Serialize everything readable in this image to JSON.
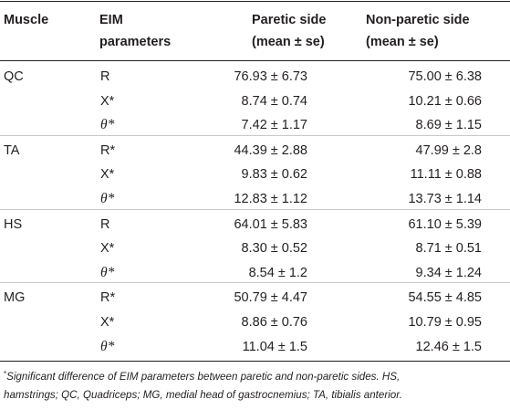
{
  "table": {
    "headers": {
      "muscle": "Muscle",
      "eim_line1": "EIM",
      "eim_line2": "parameters",
      "paretic_line1": "Paretic side",
      "paretic_line2": "(mean ± se)",
      "nonparetic_line1": "Non-paretic side",
      "nonparetic_line2": "(mean ± se)"
    },
    "rows": [
      {
        "muscle": "QC",
        "param": "R",
        "paretic": "76.93 ± 6.73",
        "nonparetic": "75.00 ± 6.38"
      },
      {
        "muscle": "",
        "param": "X*",
        "paretic": "8.74 ± 0.74",
        "nonparetic": "10.21 ± 0.66"
      },
      {
        "muscle": "",
        "param": "θ*",
        "paretic": "7.42 ± 1.17",
        "nonparetic": "8.69 ± 1.15"
      },
      {
        "muscle": "TA",
        "param": "R*",
        "paretic": "44.39 ± 2.88",
        "nonparetic": "47.99 ± 2.8"
      },
      {
        "muscle": "",
        "param": "X*",
        "paretic": "9.83 ± 0.62",
        "nonparetic": "11.11 ± 0.88"
      },
      {
        "muscle": "",
        "param": "θ*",
        "paretic": "12.83 ± 1.12",
        "nonparetic": "13.73 ± 1.14"
      },
      {
        "muscle": "HS",
        "param": "R",
        "paretic": "64.01 ± 5.83",
        "nonparetic": "61.10 ± 5.39"
      },
      {
        "muscle": "",
        "param": "X*",
        "paretic": "8.30 ± 0.52",
        "nonparetic": "8.71 ± 0.51"
      },
      {
        "muscle": "",
        "param": "θ*",
        "paretic": "8.54 ± 1.2",
        "nonparetic": "9.34 ± 1.24"
      },
      {
        "muscle": "MG",
        "param": "R*",
        "paretic": "50.79 ± 4.47",
        "nonparetic": "54.55 ± 4.85"
      },
      {
        "muscle": "",
        "param": "X*",
        "paretic": "8.86 ± 0.76",
        "nonparetic": "10.79 ± 0.95"
      },
      {
        "muscle": "",
        "param": "θ*",
        "paretic": "11.04 ± 1.5",
        "nonparetic": "12.46 ± 1.5"
      }
    ]
  },
  "footnote": {
    "marker": "*",
    "line1": "Significant difference of EIM parameters between paretic and non-paretic sides. HS,",
    "line2": "hamstrings; QC, Quadriceps; MG, medial head of gastrocnemius; TA, tibialis anterior."
  }
}
